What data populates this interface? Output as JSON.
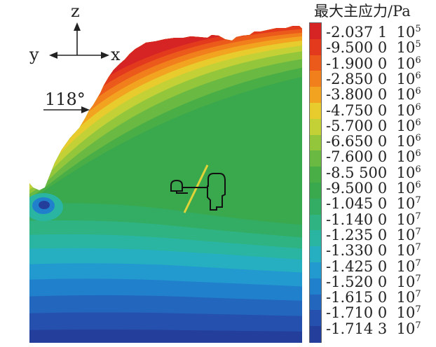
{
  "axes": {
    "z": "z",
    "y": "y",
    "x": "x"
  },
  "wall": {
    "angle": "118°"
  },
  "legend": {
    "title": "最大主应力/Pa",
    "items": [
      {
        "mantissa": "-2.037 1",
        "base": "10",
        "exp": "5",
        "color": "#d62323"
      },
      {
        "mantissa": "-9.500 0",
        "base": "10",
        "exp": "5",
        "color": "#e33a1e"
      },
      {
        "mantissa": "-1.900 0",
        "base": "10",
        "exp": "6",
        "color": "#ec5a1b"
      },
      {
        "mantissa": "-2.850 0",
        "base": "10",
        "exp": "6",
        "color": "#f07f1c"
      },
      {
        "mantissa": "-3.800 0",
        "base": "10",
        "exp": "6",
        "color": "#f2a420"
      },
      {
        "mantissa": "-4.750 0",
        "base": "10",
        "exp": "6",
        "color": "#e8cc2e"
      },
      {
        "mantissa": "-5.700 0",
        "base": "10",
        "exp": "6",
        "color": "#c3d137"
      },
      {
        "mantissa": "-6.650 0",
        "base": "10",
        "exp": "6",
        "color": "#94c63c"
      },
      {
        "mantissa": "-7.600 0",
        "base": "10",
        "exp": "6",
        "color": "#6ab942"
      },
      {
        "mantissa": "-8.5 500",
        "base": "10",
        "exp": "6",
        "color": "#4aae46"
      },
      {
        "mantissa": "-9.500 0",
        "base": "10",
        "exp": "6",
        "color": "#3aa84c"
      },
      {
        "mantissa": "-1.045 0",
        "base": "10",
        "exp": "7",
        "color": "#33ad63"
      },
      {
        "mantissa": "-1.140 0",
        "base": "10",
        "exp": "7",
        "color": "#2fb382"
      },
      {
        "mantissa": "-1.235 0",
        "base": "10",
        "exp": "7",
        "color": "#2ab5a3"
      },
      {
        "mantissa": "-1.330 0",
        "base": "10",
        "exp": "7",
        "color": "#25afc1"
      },
      {
        "mantissa": "-1.425 0",
        "base": "10",
        "exp": "7",
        "color": "#2299cf"
      },
      {
        "mantissa": "-1.520 0",
        "base": "10",
        "exp": "7",
        "color": "#2180cc"
      },
      {
        "mantissa": "-1.615 0",
        "base": "10",
        "exp": "7",
        "color": "#2366bd"
      },
      {
        "mantissa": "-1.710 0",
        "base": "10",
        "exp": "7",
        "color": "#2550ad"
      },
      {
        "mantissa": "-1.714 3",
        "base": "10",
        "exp": "7",
        "color": "#243f9b"
      }
    ]
  }
}
